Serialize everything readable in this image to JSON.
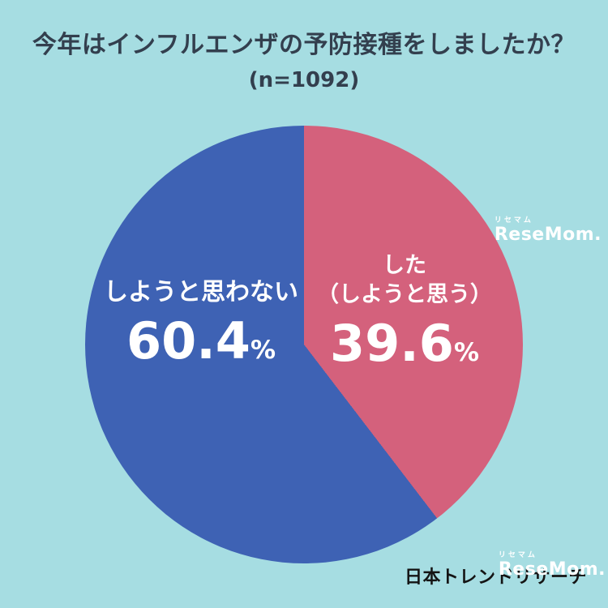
{
  "colors": {
    "background": "#a6dde2",
    "title_text": "#333f4e",
    "slice_yes": "#d4617c",
    "slice_no": "#3e62b4",
    "label_text": "#ffffff",
    "credit_text": "#141414"
  },
  "header": {
    "title": "今年はインフルエンザの予防接種をしましたか？",
    "sample": "(n=1092)"
  },
  "chart_data": {
    "type": "pie",
    "title": "今年はインフルエンザの予防接種をしましたか？",
    "n": 1092,
    "start_angle_deg": 0,
    "direction": "clockwise",
    "percent_sign": "%",
    "slices": [
      {
        "label": "した（しようと思う）",
        "label_line1": "した",
        "label_line2": "（しようと思う）",
        "value": 39.6,
        "display": "39.6",
        "color": "#d4617c"
      },
      {
        "label": "しようと思わない",
        "value": 60.4,
        "display": "60.4",
        "color": "#3e62b4"
      }
    ]
  },
  "watermark": {
    "furigana": "リセマム",
    "text": "ReseMom."
  },
  "footer": {
    "credit": "日本トレンドリサーチ"
  }
}
